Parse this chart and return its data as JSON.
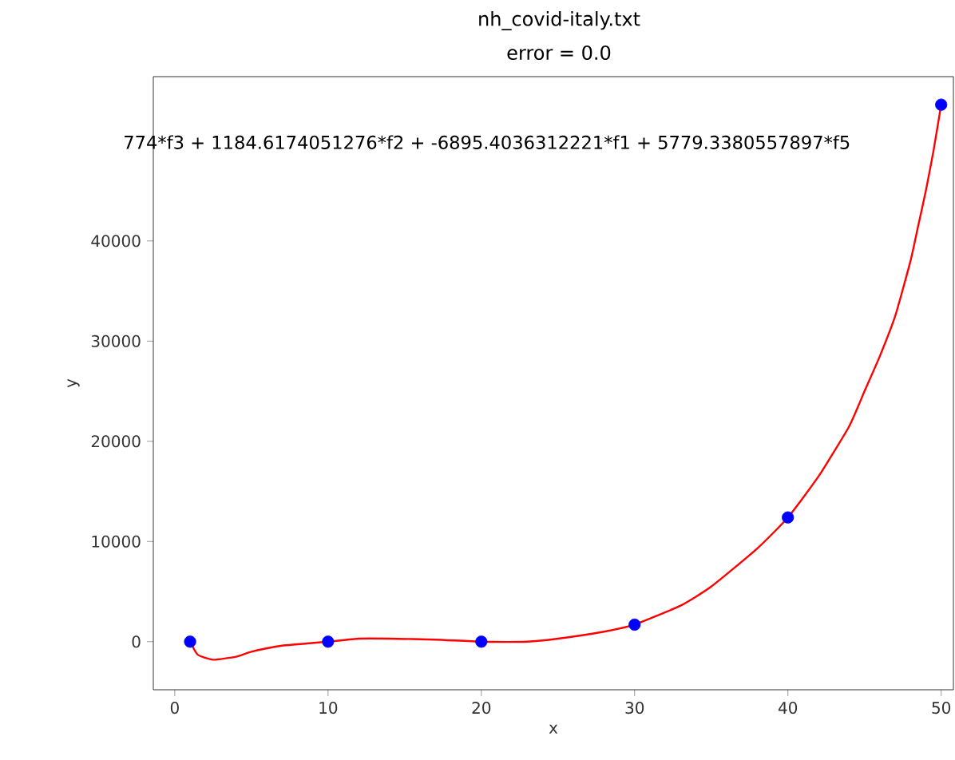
{
  "chart_data": {
    "type": "scatter",
    "title": "nh_covid-italy.txt",
    "subtitle": "error  = 0.0",
    "xlabel": "x",
    "ylabel": "y",
    "annotations": [
      "774*f3 + 1184.6174051276*f2 + -6895.4036312221*f1 + 5779.3380557897*f5"
    ],
    "xlim": [
      -1.4,
      50.8
    ],
    "ylim": [
      -4800,
      56400
    ],
    "xticks": [
      0,
      10,
      20,
      30,
      40,
      50
    ],
    "yticks": [
      0,
      10000,
      20000,
      30000,
      40000
    ],
    "grid": false,
    "series": [
      {
        "type": "line",
        "color": "#ff0000",
        "marker": "none",
        "line_style": "solid",
        "x": [
          1,
          1.5,
          2.5,
          4,
          5,
          7,
          10,
          12,
          14,
          17,
          20,
          23,
          25,
          28,
          30,
          33,
          35,
          38,
          40,
          42,
          44,
          45,
          46,
          47,
          48,
          48.5,
          49,
          49.5,
          50
        ],
        "values": [
          0,
          -1300,
          -1800,
          -1500,
          -1000,
          -400,
          0,
          300,
          300,
          200,
          0,
          0,
          300,
          1000,
          1700,
          3600,
          5500,
          9300,
          12400,
          16500,
          21500,
          25000,
          28500,
          32500,
          38000,
          41500,
          45000,
          49000,
          53600
        ]
      },
      {
        "color": "#0000ff",
        "marker": "circle",
        "x": [
          1,
          10,
          20,
          30,
          40,
          50
        ],
        "values": [
          0,
          0,
          0,
          1700,
          12400,
          53600
        ]
      }
    ]
  }
}
